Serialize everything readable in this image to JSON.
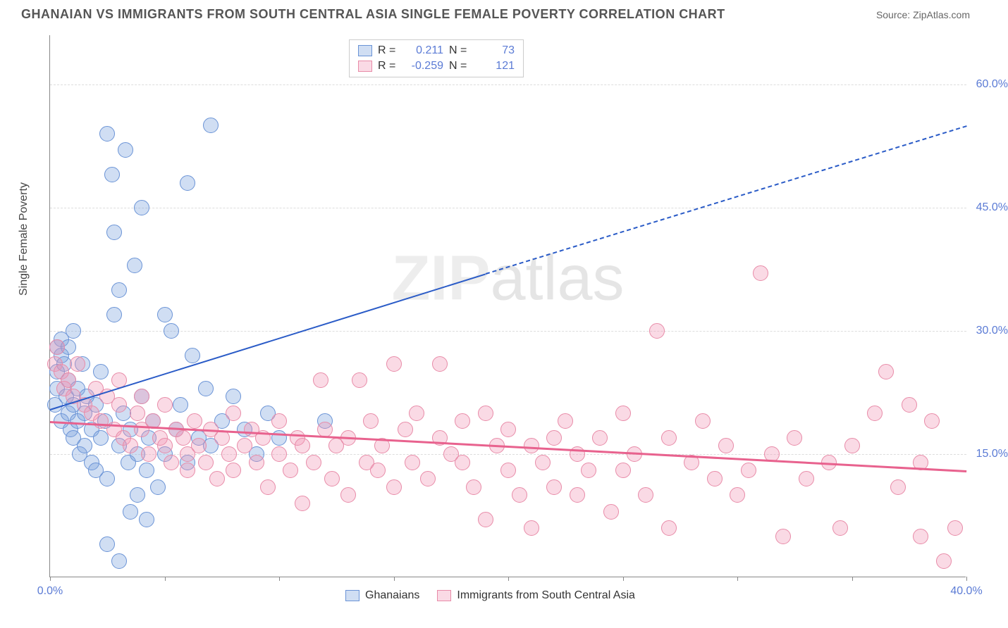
{
  "header": {
    "title": "GHANAIAN VS IMMIGRANTS FROM SOUTH CENTRAL ASIA SINGLE FEMALE POVERTY CORRELATION CHART",
    "source": "Source: ZipAtlas.com"
  },
  "chart": {
    "type": "scatter",
    "y_label": "Single Female Poverty",
    "xlim": [
      0,
      40
    ],
    "ylim": [
      0,
      66
    ],
    "x_ticks": [
      0,
      5,
      10,
      15,
      20,
      25,
      30,
      35,
      40
    ],
    "x_tick_labels": {
      "0": "0.0%",
      "40": "40.0%"
    },
    "y_ticks": [
      15,
      30,
      45,
      60
    ],
    "y_tick_labels": {
      "15": "15.0%",
      "30": "30.0%",
      "45": "45.0%",
      "60": "60.0%"
    },
    "background_color": "#ffffff",
    "grid_color": "#dddddd",
    "axis_color": "#888888",
    "watermark": {
      "bold": "ZIP",
      "thin": "atlas"
    },
    "series": [
      {
        "name": "Ghanaians",
        "color_fill": "rgba(120,160,220,0.35)",
        "color_stroke": "#6a93d6",
        "marker_radius": 11,
        "R": "0.211",
        "N": "73",
        "trend": {
          "x1": 0,
          "y1": 20.5,
          "x2": 19,
          "y2": 37,
          "dash_to_x": 40,
          "dash_to_y": 55,
          "color": "#2a5bc7",
          "width": 2.5
        },
        "points": [
          [
            0.2,
            21
          ],
          [
            0.3,
            23
          ],
          [
            0.3,
            25
          ],
          [
            0.5,
            19
          ],
          [
            0.5,
            27
          ],
          [
            0.6,
            26
          ],
          [
            0.7,
            22
          ],
          [
            0.8,
            20
          ],
          [
            0.8,
            24
          ],
          [
            0.9,
            18
          ],
          [
            1.0,
            17
          ],
          [
            1.0,
            21
          ],
          [
            1.2,
            19
          ],
          [
            1.2,
            23
          ],
          [
            1.3,
            15
          ],
          [
            1.4,
            26
          ],
          [
            1.5,
            16
          ],
          [
            1.5,
            20
          ],
          [
            1.6,
            22
          ],
          [
            1.8,
            18
          ],
          [
            1.8,
            14
          ],
          [
            2.0,
            13
          ],
          [
            2.0,
            21
          ],
          [
            2.2,
            25
          ],
          [
            2.2,
            17
          ],
          [
            2.4,
            19
          ],
          [
            2.5,
            12
          ],
          [
            2.5,
            54
          ],
          [
            2.7,
            49
          ],
          [
            2.8,
            42
          ],
          [
            2.8,
            32
          ],
          [
            3.0,
            35
          ],
          [
            3.0,
            16
          ],
          [
            3.2,
            20
          ],
          [
            3.3,
            52
          ],
          [
            3.4,
            14
          ],
          [
            3.5,
            18
          ],
          [
            3.5,
            8
          ],
          [
            3.7,
            38
          ],
          [
            3.8,
            15
          ],
          [
            4.0,
            45
          ],
          [
            4.0,
            22
          ],
          [
            4.2,
            13
          ],
          [
            4.3,
            17
          ],
          [
            4.5,
            19
          ],
          [
            4.7,
            11
          ],
          [
            5.0,
            15
          ],
          [
            5.0,
            32
          ],
          [
            5.3,
            30
          ],
          [
            5.5,
            18
          ],
          [
            5.7,
            21
          ],
          [
            6.0,
            48
          ],
          [
            6.0,
            14
          ],
          [
            6.2,
            27
          ],
          [
            6.5,
            17
          ],
          [
            6.8,
            23
          ],
          [
            7.0,
            16
          ],
          [
            7.0,
            55
          ],
          [
            7.5,
            19
          ],
          [
            8.0,
            22
          ],
          [
            8.5,
            18
          ],
          [
            9.0,
            15
          ],
          [
            9.5,
            20
          ],
          [
            10.0,
            17
          ],
          [
            12.0,
            19
          ],
          [
            3.0,
            2
          ],
          [
            2.5,
            4
          ],
          [
            4.2,
            7
          ],
          [
            3.8,
            10
          ],
          [
            0.5,
            29
          ],
          [
            0.3,
            28
          ],
          [
            0.8,
            28
          ],
          [
            1.0,
            30
          ]
        ]
      },
      {
        "name": "Immigrants from South Central Asia",
        "color_fill": "rgba(240,150,180,0.35)",
        "color_stroke": "#e88ba8",
        "marker_radius": 11,
        "R": "-0.259",
        "N": "121",
        "trend": {
          "x1": 0,
          "y1": 19,
          "x2": 40,
          "y2": 13,
          "color": "#e8628e",
          "width": 3
        },
        "points": [
          [
            0.2,
            26
          ],
          [
            0.3,
            28
          ],
          [
            0.5,
            25
          ],
          [
            0.6,
            23
          ],
          [
            0.8,
            24
          ],
          [
            1.0,
            22
          ],
          [
            1.2,
            26
          ],
          [
            1.5,
            21
          ],
          [
            1.8,
            20
          ],
          [
            2.0,
            23
          ],
          [
            2.2,
            19
          ],
          [
            2.5,
            22
          ],
          [
            2.8,
            18
          ],
          [
            3.0,
            21
          ],
          [
            3.0,
            24
          ],
          [
            3.2,
            17
          ],
          [
            3.5,
            16
          ],
          [
            3.8,
            20
          ],
          [
            4.0,
            18
          ],
          [
            4.0,
            22
          ],
          [
            4.3,
            15
          ],
          [
            4.5,
            19
          ],
          [
            4.8,
            17
          ],
          [
            5.0,
            16
          ],
          [
            5.0,
            21
          ],
          [
            5.3,
            14
          ],
          [
            5.5,
            18
          ],
          [
            5.8,
            17
          ],
          [
            6.0,
            15
          ],
          [
            6.0,
            13
          ],
          [
            6.3,
            19
          ],
          [
            6.5,
            16
          ],
          [
            6.8,
            14
          ],
          [
            7.0,
            18
          ],
          [
            7.3,
            12
          ],
          [
            7.5,
            17
          ],
          [
            7.8,
            15
          ],
          [
            8.0,
            20
          ],
          [
            8.0,
            13
          ],
          [
            8.5,
            16
          ],
          [
            8.8,
            18
          ],
          [
            9.0,
            14
          ],
          [
            9.3,
            17
          ],
          [
            9.5,
            11
          ],
          [
            10.0,
            19
          ],
          [
            10.0,
            15
          ],
          [
            10.5,
            13
          ],
          [
            10.8,
            17
          ],
          [
            11.0,
            16
          ],
          [
            11.0,
            9
          ],
          [
            11.5,
            14
          ],
          [
            11.8,
            24
          ],
          [
            12.0,
            18
          ],
          [
            12.3,
            12
          ],
          [
            12.5,
            16
          ],
          [
            13.0,
            17
          ],
          [
            13.0,
            10
          ],
          [
            13.5,
            24
          ],
          [
            13.8,
            14
          ],
          [
            14.0,
            19
          ],
          [
            14.3,
            13
          ],
          [
            14.5,
            16
          ],
          [
            15.0,
            11
          ],
          [
            15.0,
            26
          ],
          [
            15.5,
            18
          ],
          [
            15.8,
            14
          ],
          [
            16.0,
            20
          ],
          [
            16.5,
            12
          ],
          [
            17.0,
            17
          ],
          [
            17.0,
            26
          ],
          [
            17.5,
            15
          ],
          [
            18.0,
            14
          ],
          [
            18.0,
            19
          ],
          [
            18.5,
            11
          ],
          [
            19.0,
            20
          ],
          [
            19.0,
            7
          ],
          [
            19.5,
            16
          ],
          [
            20.0,
            18
          ],
          [
            20.0,
            13
          ],
          [
            20.5,
            10
          ],
          [
            21.0,
            16
          ],
          [
            21.0,
            6
          ],
          [
            21.5,
            14
          ],
          [
            22.0,
            17
          ],
          [
            22.0,
            11
          ],
          [
            22.5,
            19
          ],
          [
            23.0,
            10
          ],
          [
            23.0,
            15
          ],
          [
            23.5,
            13
          ],
          [
            24.0,
            17
          ],
          [
            24.5,
            8
          ],
          [
            25.0,
            20
          ],
          [
            25.0,
            13
          ],
          [
            25.5,
            15
          ],
          [
            26.0,
            10
          ],
          [
            26.5,
            30
          ],
          [
            27.0,
            17
          ],
          [
            27.0,
            6
          ],
          [
            28.0,
            14
          ],
          [
            28.5,
            19
          ],
          [
            29.0,
            12
          ],
          [
            29.5,
            16
          ],
          [
            30.0,
            10
          ],
          [
            30.5,
            13
          ],
          [
            31.0,
            37
          ],
          [
            31.5,
            15
          ],
          [
            32.0,
            5
          ],
          [
            32.5,
            17
          ],
          [
            33.0,
            12
          ],
          [
            34.0,
            14
          ],
          [
            34.5,
            6
          ],
          [
            35.0,
            16
          ],
          [
            36.0,
            20
          ],
          [
            36.5,
            25
          ],
          [
            37.0,
            11
          ],
          [
            37.5,
            21
          ],
          [
            38.0,
            14
          ],
          [
            38.0,
            5
          ],
          [
            38.5,
            19
          ],
          [
            39.0,
            2
          ],
          [
            39.5,
            6
          ]
        ]
      }
    ],
    "stats_box": {
      "col1_label": "R =",
      "col2_label": "N ="
    },
    "legend": {
      "items": [
        "Ghanaians",
        "Immigrants from South Central Asia"
      ]
    },
    "label_color": "#5b7bd5"
  }
}
